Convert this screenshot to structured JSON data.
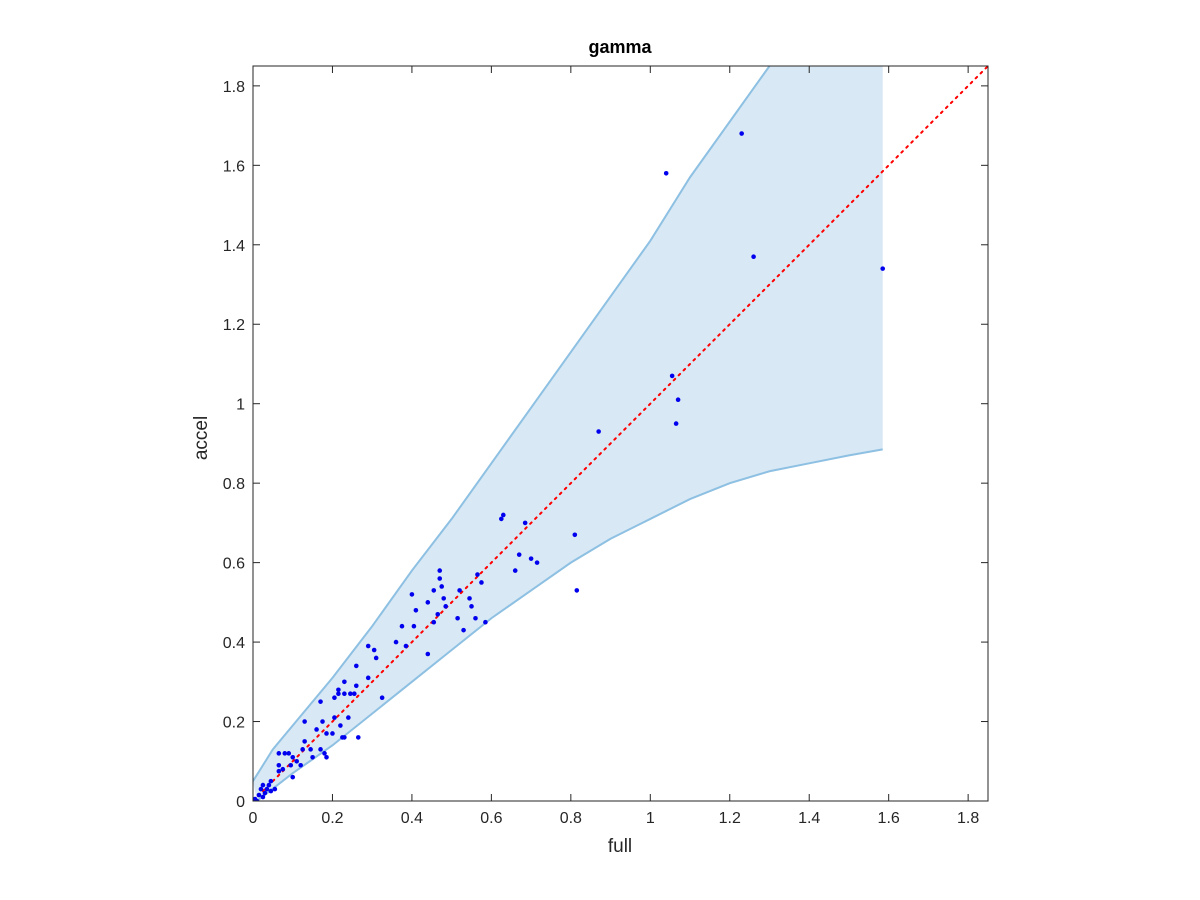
{
  "chart_data": {
    "type": "scatter",
    "title": "gamma",
    "xlabel": "full",
    "ylabel": "accel",
    "xlim": [
      0,
      1.85
    ],
    "ylim": [
      0,
      1.85
    ],
    "xticks": [
      "0",
      "0.2",
      "0.4",
      "0.6",
      "0.8",
      "1",
      "1.2",
      "1.4",
      "1.6",
      "1.8"
    ],
    "yticks": [
      "0",
      "0.2",
      "0.4",
      "0.6",
      "0.8",
      "1",
      "1.2",
      "1.4",
      "1.6",
      "1.8"
    ],
    "grid": false,
    "colors": {
      "points": "#0000ee",
      "identity_line": "#ff0000",
      "band_fill": "#d8e8f4",
      "band_edge": "#8dc0e2"
    },
    "identity_line": {
      "style": "dotted",
      "from": [
        0,
        0
      ],
      "to": [
        1.85,
        1.85
      ]
    },
    "band": {
      "upper": [
        [
          0,
          0.05
        ],
        [
          0.05,
          0.13
        ],
        [
          0.1,
          0.19
        ],
        [
          0.2,
          0.31
        ],
        [
          0.3,
          0.44
        ],
        [
          0.4,
          0.58
        ],
        [
          0.5,
          0.71
        ],
        [
          0.6,
          0.85
        ],
        [
          0.7,
          0.99
        ],
        [
          0.8,
          1.13
        ],
        [
          0.9,
          1.27
        ],
        [
          1.0,
          1.41
        ],
        [
          1.05,
          1.49
        ],
        [
          1.1,
          1.57
        ],
        [
          1.2,
          1.71
        ],
        [
          1.3,
          1.85
        ]
      ],
      "lower": [
        [
          0.01,
          0.0
        ],
        [
          0.1,
          0.07
        ],
        [
          0.2,
          0.14
        ],
        [
          0.3,
          0.22
        ],
        [
          0.4,
          0.3
        ],
        [
          0.5,
          0.38
        ],
        [
          0.6,
          0.46
        ],
        [
          0.7,
          0.53
        ],
        [
          0.8,
          0.6
        ],
        [
          0.9,
          0.66
        ],
        [
          1.0,
          0.71
        ],
        [
          1.1,
          0.76
        ],
        [
          1.2,
          0.8
        ],
        [
          1.3,
          0.83
        ],
        [
          1.4,
          0.85
        ],
        [
          1.5,
          0.87
        ],
        [
          1.585,
          0.885
        ]
      ],
      "right_edge_x": 1.585
    },
    "series": [
      {
        "points": [
          [
            1.23,
            1.68
          ],
          [
            1.04,
            1.58
          ],
          [
            1.26,
            1.37
          ],
          [
            1.585,
            1.34
          ],
          [
            1.055,
            1.07
          ],
          [
            1.07,
            1.01
          ],
          [
            1.065,
            0.95
          ],
          [
            0.87,
            0.93
          ],
          [
            0.63,
            0.72
          ],
          [
            0.625,
            0.71
          ],
          [
            0.685,
            0.7
          ],
          [
            0.81,
            0.67
          ],
          [
            0.67,
            0.62
          ],
          [
            0.7,
            0.61
          ],
          [
            0.715,
            0.6
          ],
          [
            0.66,
            0.58
          ],
          [
            0.47,
            0.58
          ],
          [
            0.47,
            0.56
          ],
          [
            0.565,
            0.57
          ],
          [
            0.455,
            0.53
          ],
          [
            0.475,
            0.54
          ],
          [
            0.575,
            0.55
          ],
          [
            0.52,
            0.53
          ],
          [
            0.815,
            0.53
          ],
          [
            0.4,
            0.52
          ],
          [
            0.48,
            0.51
          ],
          [
            0.545,
            0.51
          ],
          [
            0.44,
            0.5
          ],
          [
            0.485,
            0.49
          ],
          [
            0.41,
            0.48
          ],
          [
            0.55,
            0.49
          ],
          [
            0.465,
            0.47
          ],
          [
            0.515,
            0.46
          ],
          [
            0.56,
            0.46
          ],
          [
            0.455,
            0.45
          ],
          [
            0.585,
            0.45
          ],
          [
            0.405,
            0.44
          ],
          [
            0.375,
            0.44
          ],
          [
            0.53,
            0.43
          ],
          [
            0.36,
            0.4
          ],
          [
            0.385,
            0.39
          ],
          [
            0.29,
            0.39
          ],
          [
            0.305,
            0.38
          ],
          [
            0.44,
            0.37
          ],
          [
            0.31,
            0.36
          ],
          [
            0.26,
            0.34
          ],
          [
            0.215,
            0.28
          ],
          [
            0.23,
            0.3
          ],
          [
            0.29,
            0.31
          ],
          [
            0.26,
            0.29
          ],
          [
            0.23,
            0.27
          ],
          [
            0.245,
            0.27
          ],
          [
            0.325,
            0.26
          ],
          [
            0.215,
            0.27
          ],
          [
            0.255,
            0.27
          ],
          [
            0.205,
            0.26
          ],
          [
            0.17,
            0.25
          ],
          [
            0.24,
            0.21
          ],
          [
            0.205,
            0.21
          ],
          [
            0.175,
            0.2
          ],
          [
            0.13,
            0.2
          ],
          [
            0.22,
            0.19
          ],
          [
            0.16,
            0.18
          ],
          [
            0.2,
            0.17
          ],
          [
            0.185,
            0.17
          ],
          [
            0.23,
            0.16
          ],
          [
            0.225,
            0.16
          ],
          [
            0.265,
            0.16
          ],
          [
            0.13,
            0.15
          ],
          [
            0.145,
            0.13
          ],
          [
            0.125,
            0.13
          ],
          [
            0.17,
            0.13
          ],
          [
            0.065,
            0.12
          ],
          [
            0.09,
            0.12
          ],
          [
            0.08,
            0.12
          ],
          [
            0.18,
            0.12
          ],
          [
            0.1,
            0.11
          ],
          [
            0.185,
            0.11
          ],
          [
            0.15,
            0.11
          ],
          [
            0.11,
            0.1
          ],
          [
            0.065,
            0.09
          ],
          [
            0.095,
            0.09
          ],
          [
            0.12,
            0.09
          ],
          [
            0.075,
            0.08
          ],
          [
            0.065,
            0.075
          ],
          [
            0.1,
            0.06
          ],
          [
            0.045,
            0.05
          ],
          [
            0.025,
            0.04
          ],
          [
            0.04,
            0.04
          ],
          [
            0.035,
            0.03
          ],
          [
            0.02,
            0.03
          ],
          [
            0.055,
            0.03
          ],
          [
            0.03,
            0.02
          ],
          [
            0.045,
            0.025
          ],
          [
            0.015,
            0.015
          ],
          [
            0.025,
            0.01
          ],
          [
            0.005,
            0.005
          ],
          [
            0.01,
            0.0
          ]
        ]
      }
    ]
  }
}
